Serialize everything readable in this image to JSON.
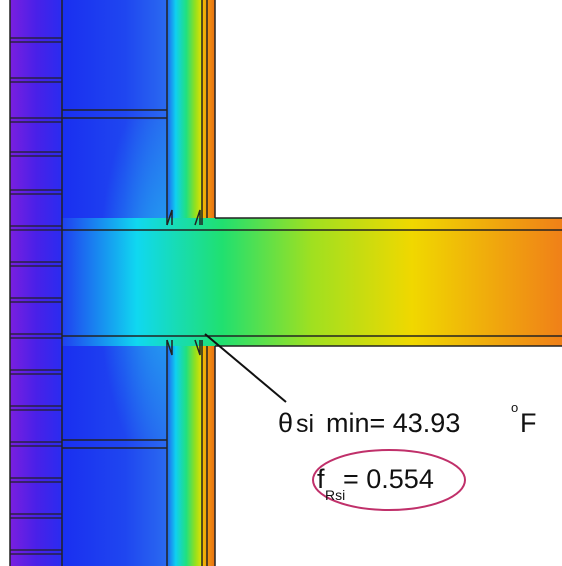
{
  "annotations": {
    "temperature": {
      "symbol": "θ",
      "subscript": "si",
      "text": "min= 43.93",
      "degree": "o",
      "unit": "F"
    },
    "factor": {
      "symbol": "f",
      "subscript": "Rsi",
      "text": "= 0.554"
    }
  }
}
